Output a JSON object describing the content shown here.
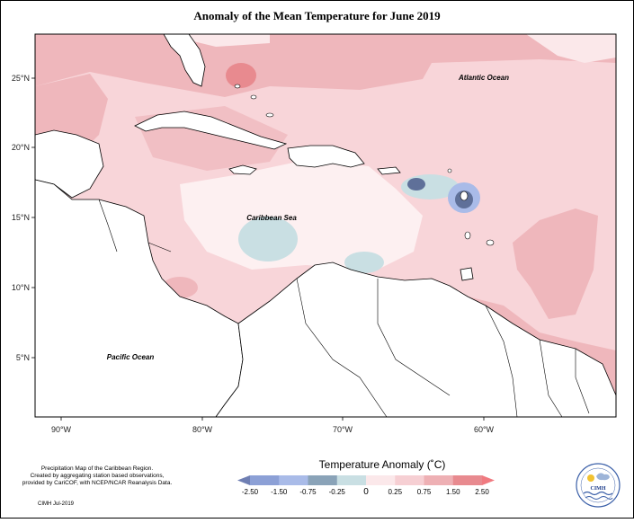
{
  "title": "Anomaly of the Mean Temperature for June 2019",
  "map": {
    "lat_labels": [
      "25°N",
      "20°N",
      "15°N",
      "10°N",
      "5°N"
    ],
    "lon_labels": [
      "90°W",
      "80°W",
      "70°W",
      "60°W"
    ],
    "ocean_labels": {
      "atlantic": "Atlantic Ocean",
      "caribbean": "Caribbean Sea",
      "pacific": "Pacific Ocean"
    }
  },
  "legend": {
    "title": "Temperature Anomaly (˚C)",
    "ticks": [
      "-2.50",
      "-1.50",
      "-0.75",
      "-0.25",
      "0",
      "0.25",
      "0.75",
      "1.50",
      "2.50"
    ],
    "colors": [
      "#6f7fb3",
      "#8ca0d6",
      "#a9bbe8",
      "#8aa3b8",
      "#c9dfe3",
      "#fbe8ea",
      "#f6cfd3",
      "#eeb0b4",
      "#e88a8f",
      "#f07a80"
    ]
  },
  "credits": {
    "line1": "Precipitation Map of the Caribbean Region.",
    "line2": "Created by aggregating station based observations,",
    "line3": "provided by CariCOF, with NCEP/NCAR Reanalysis Data.",
    "date": "CIMH Jul-2019"
  },
  "logo": {
    "text": "CIMH"
  }
}
